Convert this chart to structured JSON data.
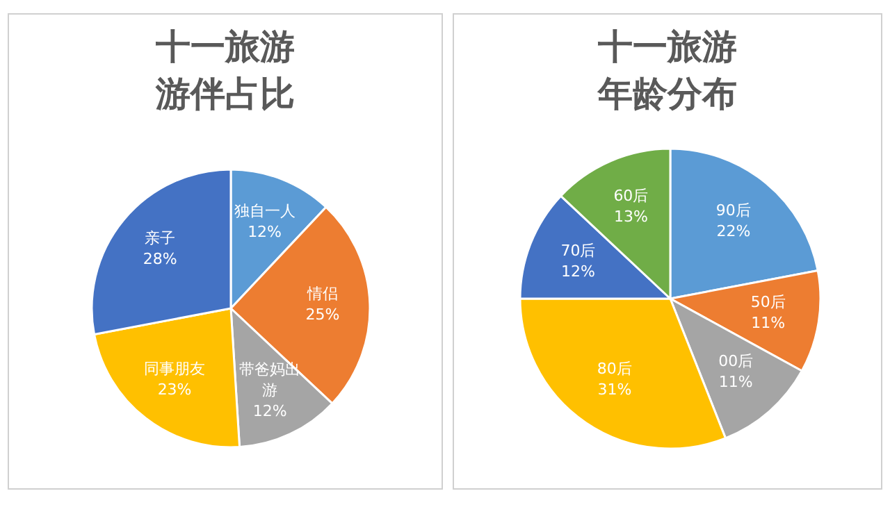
{
  "chart_data": [
    {
      "type": "pie",
      "title": "十一旅游",
      "subtitle": "游伴占比",
      "categories": [
        "独自一人",
        "情侣",
        "带爸妈出游",
        "同事朋友",
        "亲子"
      ],
      "values": [
        12,
        25,
        12,
        23,
        28
      ],
      "colors": [
        "#5b9bd5",
        "#ed7d31",
        "#a5a5a5",
        "#ffc000",
        "#4472c4"
      ],
      "value_labels": [
        "12%",
        "25%",
        "12%",
        "23%",
        "28%"
      ]
    },
    {
      "type": "pie",
      "title": "十一旅游",
      "subtitle": "年龄分布",
      "categories": [
        "90后",
        "50后",
        "00后",
        "80后",
        "70后",
        "60后"
      ],
      "values": [
        22,
        11,
        11,
        31,
        12,
        13
      ],
      "colors": [
        "#5b9bd5",
        "#ed7d31",
        "#a5a5a5",
        "#ffc000",
        "#4472c4",
        "#70ad47"
      ],
      "value_labels": [
        "22%",
        "11%",
        "11%",
        "31%",
        "12%",
        "13%"
      ]
    }
  ]
}
